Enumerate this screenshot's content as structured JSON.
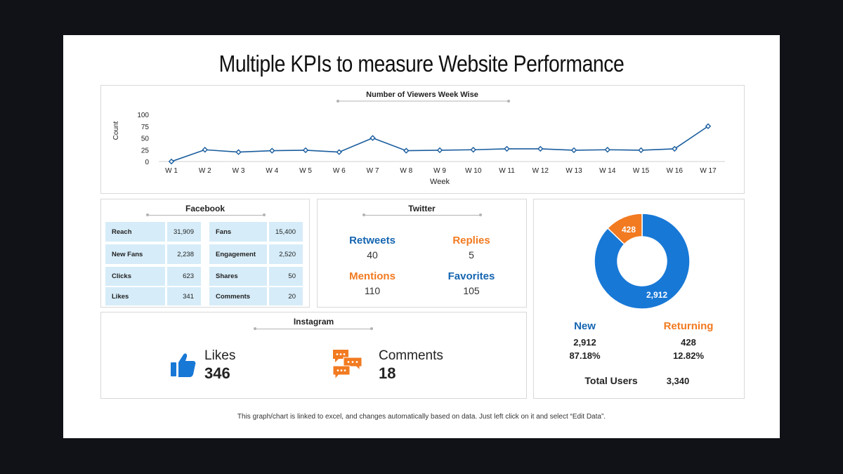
{
  "title": "Multiple KPIs to measure Website Performance",
  "colors": {
    "blue": "#1878d6",
    "orange": "#f27a20",
    "line": "#1a5d9e",
    "dark_blue_text": "#1565b0"
  },
  "chart_data": {
    "type": "line",
    "title": "Number of Viewers Week Wise",
    "xlabel": "Week",
    "ylabel": "Count",
    "ylim": [
      0,
      100
    ],
    "yticks": [
      "100",
      "75",
      "50",
      "25",
      "0"
    ],
    "categories": [
      "W 1",
      "W 2",
      "W 3",
      "W 4",
      "W 5",
      "W 6",
      "W 7",
      "W 8",
      "W 9",
      "W 10",
      "W 11",
      "W 12",
      "W 13",
      "W 14",
      "W 15",
      "W 16",
      "W 17"
    ],
    "values": [
      0,
      25,
      20,
      23,
      24,
      20,
      50,
      23,
      24,
      25,
      27,
      27,
      24,
      25,
      24,
      27,
      75
    ],
    "grid": false,
    "marker": "diamond"
  },
  "facebook": {
    "title": "Facebook",
    "left": [
      {
        "label": "Reach",
        "value": "31,909"
      },
      {
        "label": "New Fans",
        "value": "2,238"
      },
      {
        "label": "Clicks",
        "value": "623"
      },
      {
        "label": "Likes",
        "value": "341"
      }
    ],
    "right": [
      {
        "label": "Fans",
        "value": "15,400"
      },
      {
        "label": "Engagement",
        "value": "2,520"
      },
      {
        "label": "Shares",
        "value": "50"
      },
      {
        "label": "Comments",
        "value": "20"
      }
    ]
  },
  "twitter": {
    "title": "Twitter",
    "retweets_label": "Retweets",
    "retweets_value": "40",
    "replies_label": "Replies",
    "replies_value": "5",
    "mentions_label": "Mentions",
    "mentions_value": "110",
    "favorites_label": "Favorites",
    "favorites_value": "105"
  },
  "instagram": {
    "title": "Instagram",
    "likes_label": "Likes",
    "likes_value": "346",
    "comments_label": "Comments",
    "comments_value": "18"
  },
  "users": {
    "donut": [
      {
        "name": "New",
        "value": 2912,
        "label": "2,912"
      },
      {
        "name": "Returning",
        "value": 428,
        "label": "428"
      }
    ],
    "new_label": "New",
    "new_count": "2,912",
    "new_pct": "87.18%",
    "returning_label": "Returning",
    "returning_count": "428",
    "returning_pct": "12.82%",
    "total_label": "Total Users",
    "total_value": "3,340"
  },
  "footer": "This graph/chart is linked to excel, and changes automatically based on data. Just left click on it and select “Edit Data”."
}
